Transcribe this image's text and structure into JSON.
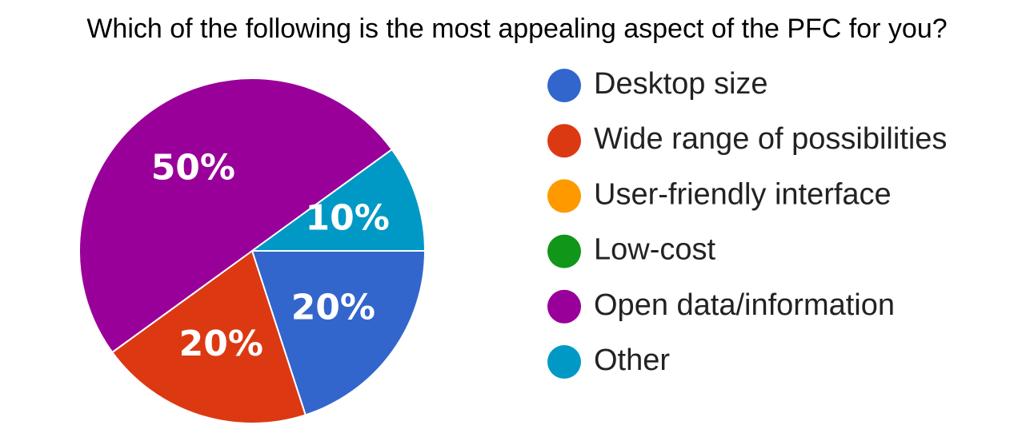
{
  "chart_data": {
    "type": "pie",
    "title": "Which of the following is the most appealing aspect of the PFC for you?",
    "categories": [
      "Desktop size",
      "Wide range of possibilities",
      "User-friendly interface",
      "Low-cost",
      "Open data/information",
      "Other"
    ],
    "values": [
      20,
      20,
      0,
      0,
      50,
      10
    ],
    "value_labels": [
      "20%",
      "20%",
      null,
      null,
      "50%",
      "10%"
    ],
    "colors": [
      "#3366cc",
      "#dc3912",
      "#ff9900",
      "#109618",
      "#990099",
      "#0099c6"
    ],
    "legend": "right"
  }
}
